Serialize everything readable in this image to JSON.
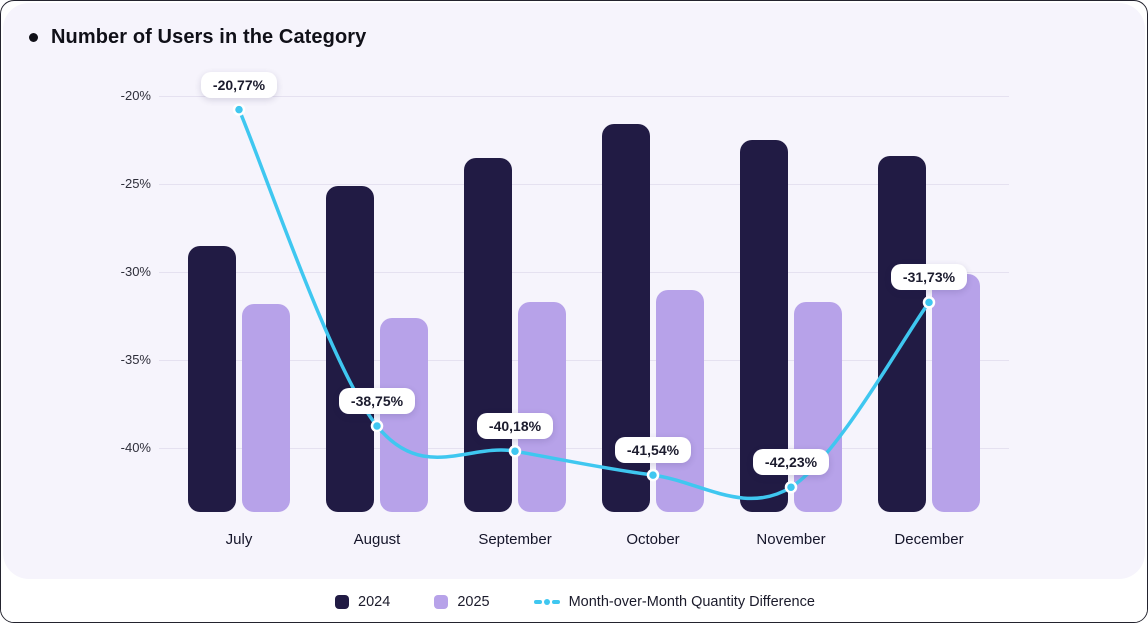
{
  "title": "Number of Users in the Category",
  "legend": {
    "series_2024": "2024",
    "series_2025": "2025",
    "line": "Month-over-Month Quantity Difference"
  },
  "colors": {
    "page_bg": "#FFFFFF",
    "frame_border": "#23232E",
    "card_bg": "#F6F4FC",
    "gridline": "#E5E1F0",
    "bar_2024": "#211B44",
    "bar_2025": "#B7A2E9",
    "line": "#3FC7F0",
    "chip_bg": "#FFFFFF",
    "chip_text": "#1C1C2E",
    "axis_text": "#2E2E3A",
    "month_text": "#15152A",
    "title_text": "#101018",
    "legend_text": "#1B1B2B"
  },
  "chart_data": {
    "type": "bar",
    "subtype": "grouped bars with line overlay",
    "title": "Number of Users in the Category",
    "categories": [
      "July",
      "August",
      "September",
      "October",
      "November",
      "December"
    ],
    "series": [
      {
        "name": "2024",
        "type": "bar",
        "values": [
          -28.5,
          -25.1,
          -23.5,
          -21.6,
          -22.5,
          -23.4
        ]
      },
      {
        "name": "2025",
        "type": "bar",
        "values": [
          -31.8,
          -32.6,
          -31.7,
          -31.0,
          -31.7,
          -30.1
        ]
      },
      {
        "name": "Month-over-Month Quantity Difference",
        "type": "line",
        "values": [
          -20.77,
          -38.75,
          -40.18,
          -41.54,
          -42.23,
          -31.73
        ],
        "labels": [
          "-20,77%",
          "-38,75%",
          "-40,18%",
          "-41,54%",
          "-42,23%",
          "-31,73%"
        ]
      }
    ],
    "y_axis": {
      "ticks": [
        -20,
        -25,
        -30,
        -35,
        -40
      ],
      "tick_labels": [
        "-20%",
        "-25%",
        "-30%",
        "-35%",
        "-40%"
      ],
      "max": -20,
      "min": -43.6,
      "unit": "%"
    },
    "grid": true,
    "legend_position": "bottom"
  }
}
